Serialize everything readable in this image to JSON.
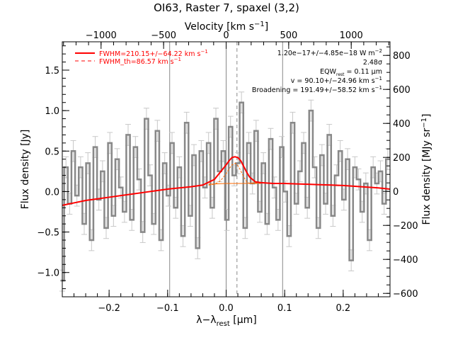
{
  "chart_data": {
    "type": "line",
    "title": "OI63, Raster 7, spaxel (3,2)",
    "xlabel": "λ−λ",
    "xlabel_sub": "rest",
    "xlabel_unit": " [μm]",
    "ylabel": "Flux density [Jy]",
    "top_xlabel": "Velocity [km s",
    "top_xlabel_sup": "−1",
    "top_xlabel_close": "]",
    "right_ylabel": "Flux density [MJy sr",
    "right_ylabel_sup": "−1",
    "right_ylabel_close": "]",
    "xlim": [
      -0.28,
      0.28
    ],
    "ylim": [
      -1.3,
      1.85
    ],
    "right_ylim": [
      -620,
      880
    ],
    "top_xlim": [
      -1310,
      1310
    ],
    "x_ticks": [
      -0.2,
      -0.1,
      0.0,
      0.1,
      0.2
    ],
    "x_tick_labels": [
      "−0.2",
      "−0.1",
      "0.0",
      "0.1",
      "0.2"
    ],
    "y_ticks": [
      -1.0,
      -0.5,
      0.0,
      0.5,
      1.0,
      1.5
    ],
    "y_tick_labels": [
      "−1.0",
      "−0.5",
      "0.0",
      "0.5",
      "1.0",
      "1.5"
    ],
    "right_ticks": [
      -600,
      -400,
      -200,
      0,
      200,
      400,
      600,
      800
    ],
    "right_tick_labels": [
      "−600",
      "−400",
      "−200",
      "0",
      "200",
      "400",
      "600",
      "800"
    ],
    "top_ticks": [
      -1000,
      -500,
      0,
      500,
      1000
    ],
    "top_tick_labels": [
      "−1000",
      "−500",
      "0",
      "500",
      "1000"
    ],
    "vlines_solid": [
      -0.0965,
      0.0,
      0.0965
    ],
    "vline_dashed": 0.0185,
    "legend": [
      {
        "label": "FWHM=210.15+/−64.22 km s",
        "sup": "−1",
        "style": "solid",
        "color": "#ff0000"
      },
      {
        "label": "FWHM_th=86.57 km s",
        "sup": "−1",
        "style": "dashed",
        "color": "#ff0000"
      }
    ],
    "annotations": [
      {
        "main": "1.20e−17+/−4.85e−18 W m",
        "sup": "−2"
      },
      {
        "main": "2.48σ"
      },
      {
        "main": "EQW",
        "sub": "rest",
        "rest": " = 0.11 μm"
      },
      {
        "main": "v = 90.10+/−24.96 km s",
        "sup": "−1"
      },
      {
        "main": "Broadening = 191.49+/−58.52 km s",
        "sup": "−1"
      }
    ],
    "spectrum_color": "#888888",
    "fit_color": "#ff0000",
    "components_color": "#ff6a00",
    "spectrum": {
      "x": [
        -0.28,
        -0.2737,
        -0.2675,
        -0.2612,
        -0.255,
        -0.2487,
        -0.2425,
        -0.2362,
        -0.23,
        -0.2237,
        -0.2175,
        -0.2112,
        -0.205,
        -0.1987,
        -0.1925,
        -0.1862,
        -0.18,
        -0.1737,
        -0.1675,
        -0.1612,
        -0.155,
        -0.1487,
        -0.1425,
        -0.1362,
        -0.13,
        -0.1237,
        -0.1175,
        -0.1112,
        -0.105,
        -0.0987,
        -0.0925,
        -0.0862,
        -0.08,
        -0.0737,
        -0.0675,
        -0.0612,
        -0.055,
        -0.0487,
        -0.0425,
        -0.0362,
        -0.03,
        -0.0237,
        -0.0175,
        -0.0112,
        -0.005,
        0.0012,
        0.0075,
        0.0137,
        0.02,
        0.0262,
        0.0325,
        0.0387,
        0.045,
        0.0512,
        0.0575,
        0.0637,
        0.07,
        0.0762,
        0.0825,
        0.0887,
        0.095,
        0.1012,
        0.1075,
        0.1137,
        0.12,
        0.1262,
        0.1325,
        0.1387,
        0.145,
        0.1512,
        0.1575,
        0.1637,
        0.17,
        0.1762,
        0.1825,
        0.1887,
        0.195,
        0.2012,
        0.2075,
        0.2137,
        0.22,
        0.2262,
        0.2325,
        0.2387,
        0.245,
        0.2512,
        0.2575,
        0.2637,
        0.27,
        0.2762
      ],
      "y": [
        -1.1,
        0.3,
        -0.15,
        0.5,
        -0.05,
        0.3,
        -0.4,
        0.35,
        -0.6,
        0.55,
        -0.1,
        0.25,
        -0.45,
        0.6,
        -0.3,
        0.4,
        0.05,
        -0.25,
        0.7,
        -0.35,
        0.55,
        0.15,
        -0.5,
        0.9,
        0.2,
        -0.4,
        0.75,
        -0.6,
        0.35,
        -0.05,
        0.6,
        -0.2,
        0.3,
        -0.55,
        0.85,
        -0.3,
        0.45,
        -0.7,
        0.5,
        0.05,
        0.6,
        -0.2,
        0.9,
        0.25,
        0.5,
        -0.35,
        0.8,
        0.2,
        0.35,
        1.1,
        -0.45,
        0.6,
        0.1,
        0.75,
        -0.25,
        0.35,
        -0.4,
        0.65,
        0.05,
        -0.35,
        0.55,
        0.0,
        -0.55,
        0.85,
        -0.15,
        0.25,
        0.6,
        -0.2,
        1.0,
        0.3,
        -0.45,
        0.45,
        -0.15,
        0.7,
        -0.3,
        0.2,
        0.5,
        -0.1,
        0.4,
        -0.85,
        0.3,
        0.15,
        -0.25,
        0.1,
        -0.6,
        0.3,
        0.1,
        0.25,
        -0.15,
        0.4
      ],
      "err": 0.13
    },
    "fit_curve": {
      "x": [
        -0.28,
        -0.26,
        -0.24,
        -0.22,
        -0.2,
        -0.18,
        -0.16,
        -0.14,
        -0.12,
        -0.1,
        -0.08,
        -0.06,
        -0.04,
        -0.02,
        0.0,
        0.005,
        0.01,
        0.015,
        0.02,
        0.025,
        0.03,
        0.035,
        0.04,
        0.05,
        0.06,
        0.08,
        0.1,
        0.12,
        0.14,
        0.16,
        0.18,
        0.2,
        0.22,
        0.24,
        0.26,
        0.28
      ],
      "y": [
        -0.17,
        -0.14,
        -0.11,
        -0.09,
        -0.07,
        -0.05,
        -0.03,
        -0.01,
        0.01,
        0.03,
        0.045,
        0.06,
        0.08,
        0.15,
        0.33,
        0.38,
        0.42,
        0.43,
        0.42,
        0.38,
        0.31,
        0.24,
        0.18,
        0.12,
        0.11,
        0.1,
        0.1,
        0.095,
        0.09,
        0.085,
        0.08,
        0.075,
        0.065,
        0.055,
        0.045,
        0.03
      ]
    },
    "component_curve": {
      "x": [
        -0.03,
        -0.02,
        -0.01,
        0.0,
        0.005,
        0.01,
        0.015,
        0.018,
        0.022,
        0.026,
        0.03,
        0.035,
        0.04,
        0.05,
        0.06
      ],
      "y": [
        0.08,
        0.09,
        0.13,
        0.22,
        0.28,
        0.33,
        0.35,
        0.34,
        0.3,
        0.24,
        0.18,
        0.12,
        0.1,
        0.1,
        0.1
      ]
    },
    "continuum_component": {
      "x": [
        -0.03,
        0.0,
        0.03,
        0.06
      ],
      "y": [
        0.09,
        0.1,
        0.1,
        0.11
      ]
    }
  }
}
